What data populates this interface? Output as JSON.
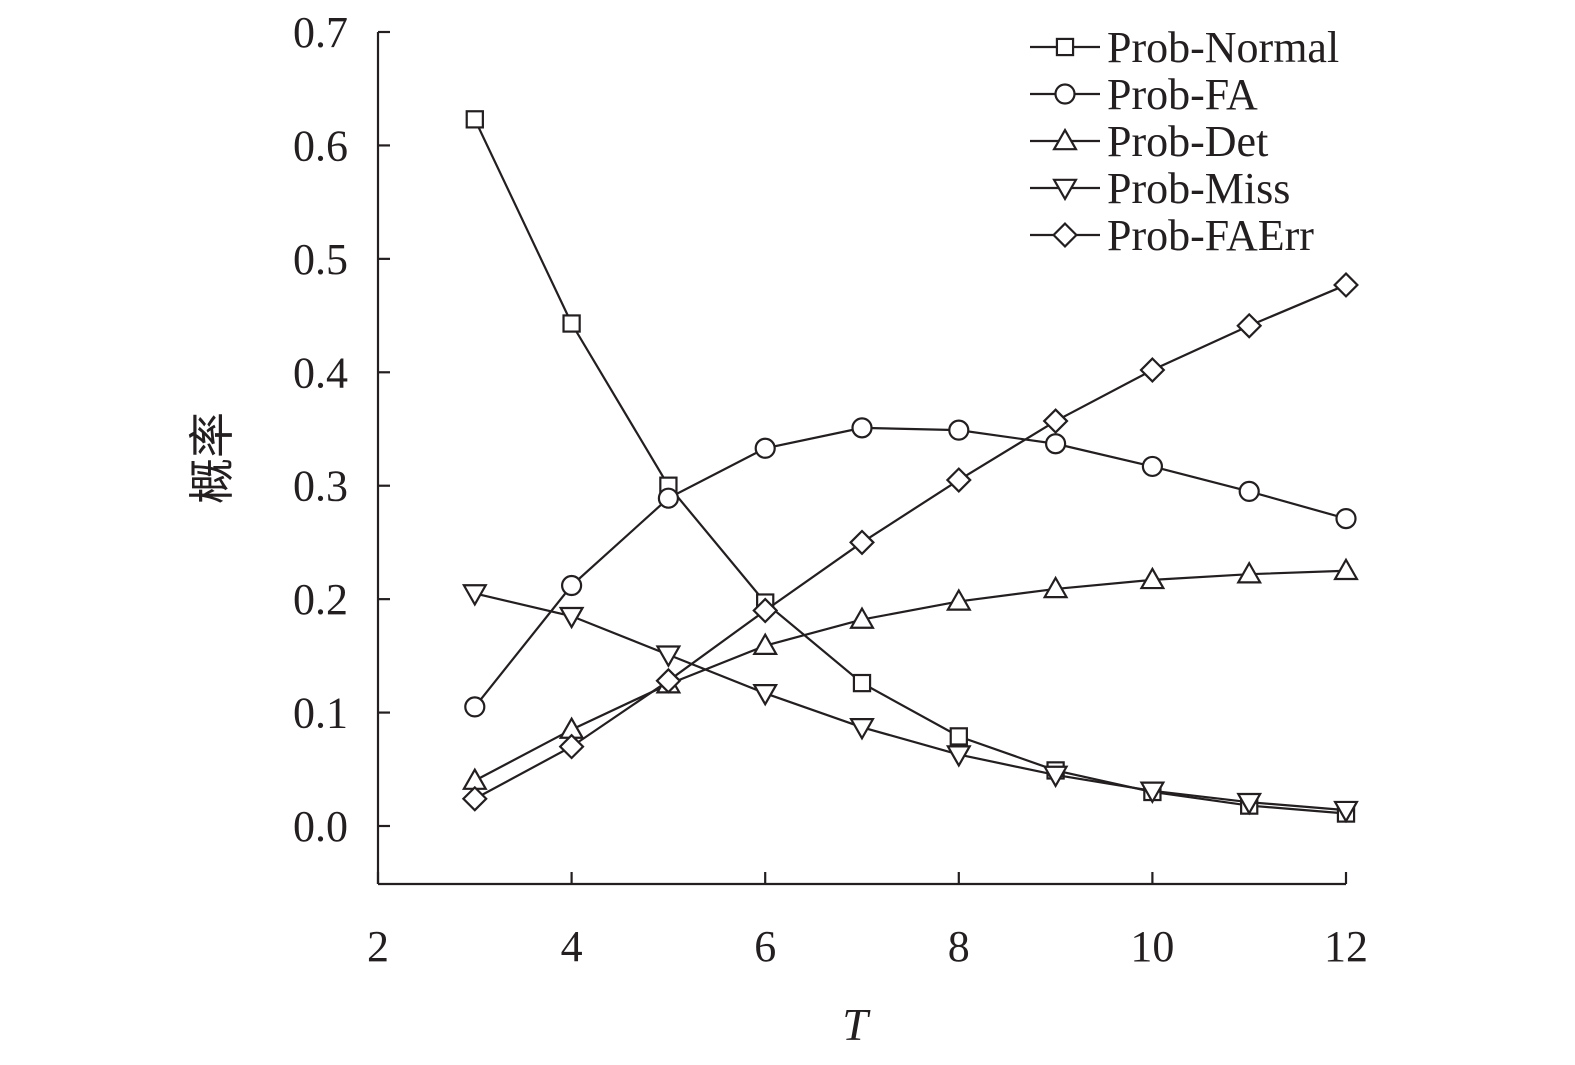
{
  "chart_data": {
    "type": "line",
    "xlabel": "T",
    "ylabel": "概率",
    "xlim": [
      2,
      12
    ],
    "ylim": [
      -0.05,
      0.7
    ],
    "x_ticks": [
      2,
      4,
      6,
      8,
      10,
      12
    ],
    "x_tick_labels": [
      "2",
      "4",
      "6",
      "8",
      "10",
      "12"
    ],
    "y_ticks": [
      0.0,
      0.1,
      0.2,
      0.3,
      0.4,
      0.5,
      0.6,
      0.7
    ],
    "y_tick_labels": [
      "0.0",
      "0.1",
      "0.2",
      "0.3",
      "0.4",
      "0.5",
      "0.6",
      "0.7"
    ],
    "grid": false,
    "legend_position": "top-right",
    "x": [
      3,
      4,
      5,
      6,
      7,
      8,
      9,
      10,
      11,
      12
    ],
    "series": [
      {
        "name": "Prob-Normal",
        "marker": "square",
        "values": [
          0.623,
          0.443,
          0.3,
          0.197,
          0.126,
          0.079,
          0.049,
          0.03,
          0.018,
          0.011
        ]
      },
      {
        "name": "Prob-FA",
        "marker": "circle",
        "values": [
          0.105,
          0.212,
          0.289,
          0.333,
          0.351,
          0.349,
          0.337,
          0.317,
          0.295,
          0.271
        ]
      },
      {
        "name": "Prob-Det",
        "marker": "triangle-up",
        "values": [
          0.04,
          0.085,
          0.125,
          0.159,
          0.182,
          0.198,
          0.209,
          0.217,
          0.222,
          0.225
        ]
      },
      {
        "name": "Prob-Miss",
        "marker": "triangle-down",
        "values": [
          0.205,
          0.185,
          0.151,
          0.117,
          0.087,
          0.063,
          0.045,
          0.031,
          0.021,
          0.014
        ]
      },
      {
        "name": "Prob-FAErr",
        "marker": "diamond",
        "values": [
          0.024,
          0.07,
          0.128,
          0.19,
          0.25,
          0.305,
          0.357,
          0.402,
          0.441,
          0.477
        ]
      }
    ]
  }
}
